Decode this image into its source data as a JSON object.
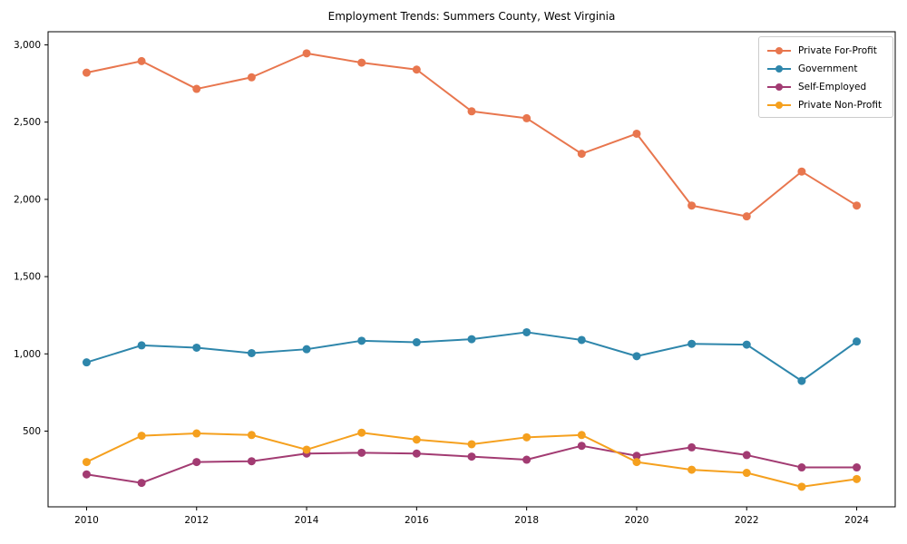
{
  "chart_data": {
    "type": "line",
    "title": "Employment Trends: Summers County, West Virginia",
    "xlabel": "",
    "ylabel": "",
    "grid": false,
    "legend_position": "upper right",
    "marker": "circle",
    "x": [
      2010,
      2011,
      2012,
      2013,
      2014,
      2015,
      2016,
      2017,
      2018,
      2019,
      2020,
      2021,
      2022,
      2023,
      2024
    ],
    "series": [
      {
        "name": "Private For-Profit",
        "color": "#E8764E",
        "values": [
          2820,
          2895,
          2715,
          2790,
          2945,
          2885,
          2840,
          2570,
          2525,
          2295,
          2425,
          1960,
          1890,
          2180,
          1960
        ]
      },
      {
        "name": "Government",
        "color": "#2E86AB",
        "values": [
          945,
          1055,
          1040,
          1005,
          1030,
          1085,
          1075,
          1095,
          1140,
          1090,
          985,
          1065,
          1060,
          825,
          1080
        ]
      },
      {
        "name": "Self-Employed",
        "color": "#A23B72",
        "values": [
          220,
          165,
          300,
          305,
          355,
          360,
          355,
          335,
          315,
          405,
          340,
          395,
          345,
          265,
          265
        ]
      },
      {
        "name": "Private Non-Profit",
        "color": "#F5A01E",
        "values": [
          300,
          470,
          485,
          475,
          380,
          490,
          445,
          415,
          460,
          475,
          300,
          250,
          230,
          140,
          190
        ]
      }
    ],
    "xlim": [
      2009.3,
      2024.7
    ],
    "ylim": [
      10,
      3085
    ],
    "x_ticks": [
      2010,
      2012,
      2014,
      2016,
      2018,
      2020,
      2022,
      2024
    ],
    "x_tick_labels": [
      "2010",
      "2012",
      "2014",
      "2016",
      "2018",
      "2020",
      "2022",
      "2024"
    ],
    "y_ticks": [
      500,
      1000,
      1500,
      2000,
      2500,
      3000
    ],
    "y_tick_labels": [
      "500",
      "1,000",
      "1,500",
      "2,000",
      "2,500",
      "3,000"
    ],
    "axis_color": "#000000",
    "background_color": "#ffffff"
  }
}
